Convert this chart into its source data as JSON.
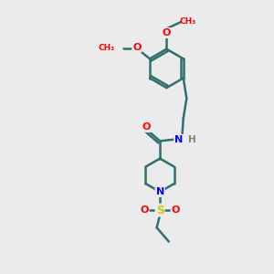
{
  "bg_color": "#ebebeb",
  "bond_color": "#2d7070",
  "bond_width": 1.8,
  "atom_colors": {
    "O": "#ff0000",
    "N": "#0000ff",
    "S": "#cccc00",
    "C": "#2d7070",
    "H": "#808080"
  }
}
